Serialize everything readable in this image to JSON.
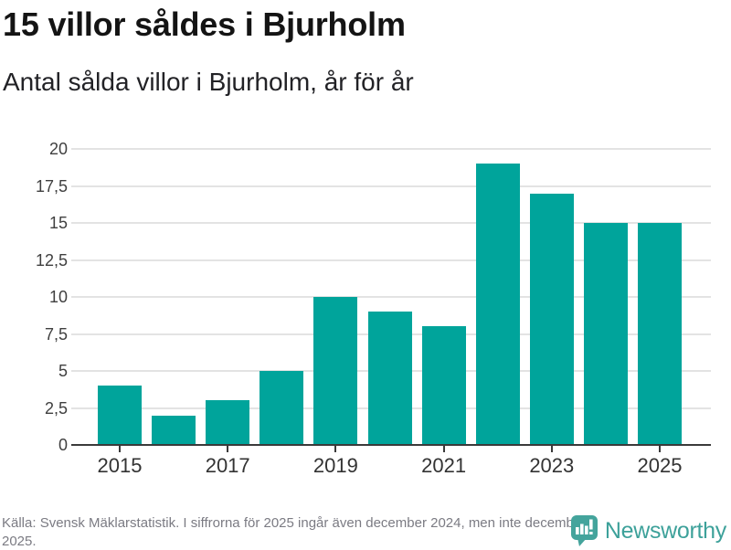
{
  "header": {
    "title": "15 villor såldes i Bjurholm",
    "subtitle": "Antal sålda villor i Bjurholm, år för år"
  },
  "chart_data": {
    "type": "bar",
    "title": "15 villor såldes i Bjurholm",
    "subtitle": "Antal sålda villor i Bjurholm, år för år",
    "categories": [
      "2015",
      "2016",
      "2017",
      "2018",
      "2019",
      "2020",
      "2021",
      "2022",
      "2023",
      "2024",
      "2025"
    ],
    "values": [
      4,
      2,
      3,
      5,
      10,
      9,
      8,
      19,
      17,
      15,
      15
    ],
    "xlabel": "",
    "ylabel": "",
    "ylim": [
      0,
      20
    ],
    "ytick_step": 2.5,
    "yticks": [
      {
        "v": 0,
        "label": "0"
      },
      {
        "v": 2.5,
        "label": "2,5"
      },
      {
        "v": 5,
        "label": "5"
      },
      {
        "v": 7.5,
        "label": "7,5"
      },
      {
        "v": 10,
        "label": "10"
      },
      {
        "v": 12.5,
        "label": "12,5"
      },
      {
        "v": 15,
        "label": "15"
      },
      {
        "v": 17.5,
        "label": "17,5"
      },
      {
        "v": 20,
        "label": "20"
      }
    ],
    "xtick_labels": [
      "2015",
      "2017",
      "2019",
      "2021",
      "2023",
      "2025"
    ],
    "grid": "horizontal",
    "legend": "none",
    "decimal_separator": ","
  },
  "colors": {
    "bar": "#00a49b",
    "grid": "#e3e3e3",
    "axis": "#3a3a3a",
    "brand_teal": "#3da19a",
    "logo_icon": "#44a49c"
  },
  "footer": {
    "source": "Källa: Svensk Mäklarstatistik. I siffrorna för 2025 ingår även december 2024, men inte december 2025.",
    "brand": "Newsworthy"
  }
}
